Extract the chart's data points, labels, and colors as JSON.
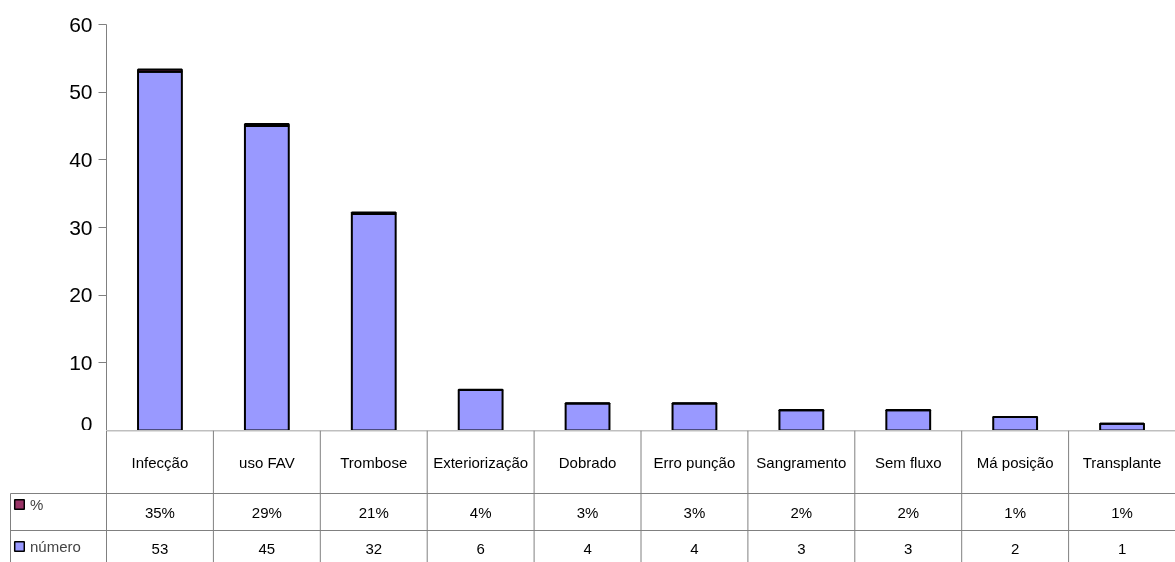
{
  "chart_data": {
    "type": "bar",
    "stacked": true,
    "categories": [
      "Infecção",
      "uso FAV",
      "Trombose",
      "Exteriorização",
      "Dobrado",
      "Erro punção",
      "Sangramento",
      "Sem fluxo",
      "Má posição",
      "Transplante"
    ],
    "series": [
      {
        "name": "número",
        "color": "#9999ff",
        "values": [
          53,
          45,
          32,
          6,
          4,
          4,
          3,
          3,
          2,
          1
        ],
        "value_labels": [
          "53",
          "45",
          "32",
          "6",
          "4",
          "4",
          "3",
          "3",
          "2",
          "1"
        ]
      },
      {
        "name": "%",
        "color": "#993366",
        "values": [
          0.35,
          0.29,
          0.21,
          0.04,
          0.03,
          0.03,
          0.02,
          0.02,
          0.01,
          0.01
        ],
        "value_labels": [
          "35%",
          "29%",
          "21%",
          "4%",
          "3%",
          "3%",
          "2%",
          "2%",
          "1%",
          "1%"
        ]
      }
    ],
    "ylim": [
      0,
      60
    ],
    "yticks": [
      0,
      10,
      20,
      30,
      40,
      50,
      60
    ],
    "grid": false,
    "legend": "bottom left"
  }
}
